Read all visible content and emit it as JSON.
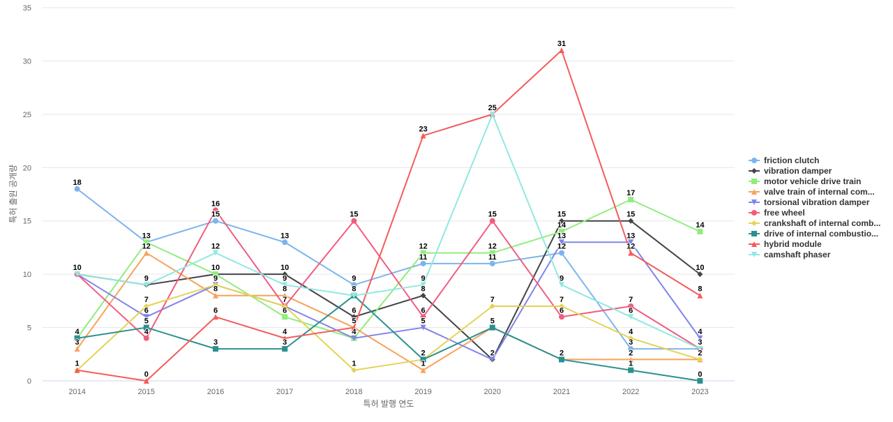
{
  "chart_data": {
    "type": "line",
    "title": "",
    "xlabel": "특허 발행 연도",
    "ylabel": "특허 출원 공개량",
    "x": [
      "2014",
      "2015",
      "2016",
      "2017",
      "2018",
      "2019",
      "2020",
      "2021",
      "2022",
      "2023"
    ],
    "ylim": [
      0,
      35
    ],
    "yticks": [
      0,
      5,
      10,
      15,
      20,
      25,
      30,
      35
    ],
    "grid": true,
    "legend_position": "right",
    "series": [
      {
        "name": "friction clutch",
        "color": "#7cb5ec",
        "marker": "circle",
        "values": [
          18,
          13,
          15,
          13,
          9,
          11,
          11,
          12,
          3,
          3
        ]
      },
      {
        "name": "vibration damper",
        "color": "#434348",
        "marker": "diamond",
        "values": [
          10,
          9,
          10,
          10,
          6,
          8,
          2,
          15,
          15,
          10
        ]
      },
      {
        "name": "motor vehicle drive train",
        "color": "#90ed7d",
        "marker": "square",
        "values": [
          4,
          13,
          10,
          6,
          4,
          12,
          12,
          14,
          17,
          14
        ]
      },
      {
        "name": "valve train of internal com...",
        "color": "#f7a35c",
        "marker": "triangle",
        "values": [
          3,
          12,
          8,
          8,
          5,
          1,
          5,
          2,
          2,
          2
        ]
      },
      {
        "name": "torsional vibration damper",
        "color": "#8085e9",
        "marker": "triangle-down",
        "values": [
          10,
          6,
          9,
          7,
          4,
          5,
          2,
          13,
          13,
          4
        ]
      },
      {
        "name": "free wheel",
        "color": "#f15c80",
        "marker": "circle",
        "values": [
          10,
          4,
          16,
          7,
          15,
          6,
          15,
          6,
          7,
          3
        ]
      },
      {
        "name": "crankshaft of internal comb...",
        "color": "#e4d354",
        "marker": "diamond",
        "values": [
          1,
          7,
          9,
          7,
          1,
          2,
          7,
          7,
          4,
          2
        ]
      },
      {
        "name": "drive of internal combustio...",
        "color": "#2b908f",
        "marker": "square",
        "values": [
          4,
          5,
          3,
          3,
          8,
          2,
          5,
          2,
          1,
          0
        ]
      },
      {
        "name": "hybrid module",
        "color": "#f45b5b",
        "marker": "triangle",
        "values": [
          1,
          0,
          6,
          4,
          5,
          23,
          25,
          31,
          12,
          8
        ]
      },
      {
        "name": "camshaft phaser",
        "color": "#91e8e1",
        "marker": "triangle-down",
        "values": [
          10,
          9,
          12,
          9,
          8,
          9,
          25,
          9,
          6,
          3
        ]
      }
    ]
  }
}
